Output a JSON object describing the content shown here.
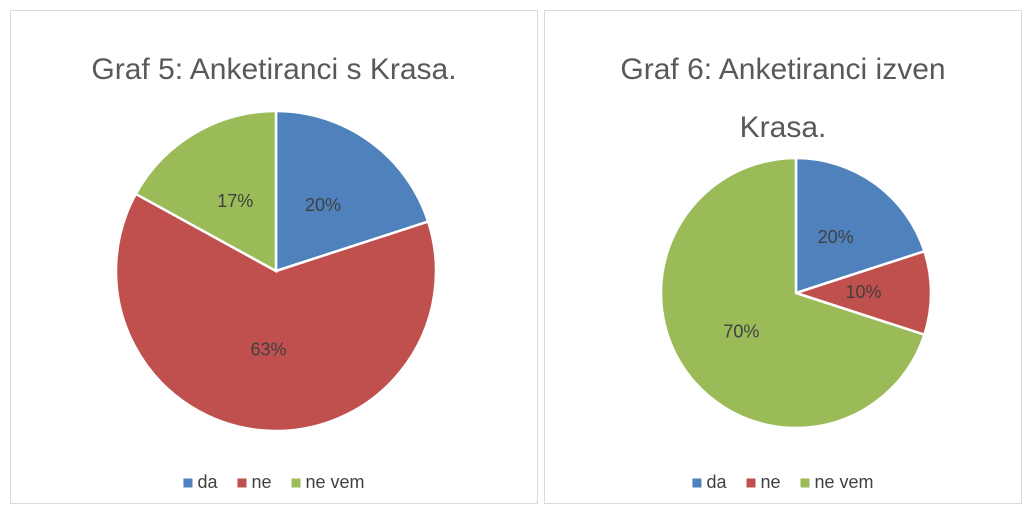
{
  "chart_data": [
    {
      "type": "pie",
      "title": "Graf 5: Anketiranci s Krasa.",
      "categories": [
        "da",
        "ne",
        "ne vem"
      ],
      "values": [
        20,
        63,
        17
      ],
      "value_labels": [
        "20%",
        "63%",
        "17%"
      ],
      "colors": [
        "#4f81bd",
        "#c0504d",
        "#9bbb59"
      ],
      "legend": "bottom"
    },
    {
      "type": "pie",
      "title": "Graf 6: Anketiranci izven Krasa.",
      "categories": [
        "da",
        "ne",
        "ne vem"
      ],
      "values": [
        20,
        10,
        70
      ],
      "value_labels": [
        "20%",
        "10%",
        "70%"
      ],
      "colors": [
        "#4f81bd",
        "#c0504d",
        "#9bbb59"
      ],
      "legend": "bottom"
    }
  ]
}
